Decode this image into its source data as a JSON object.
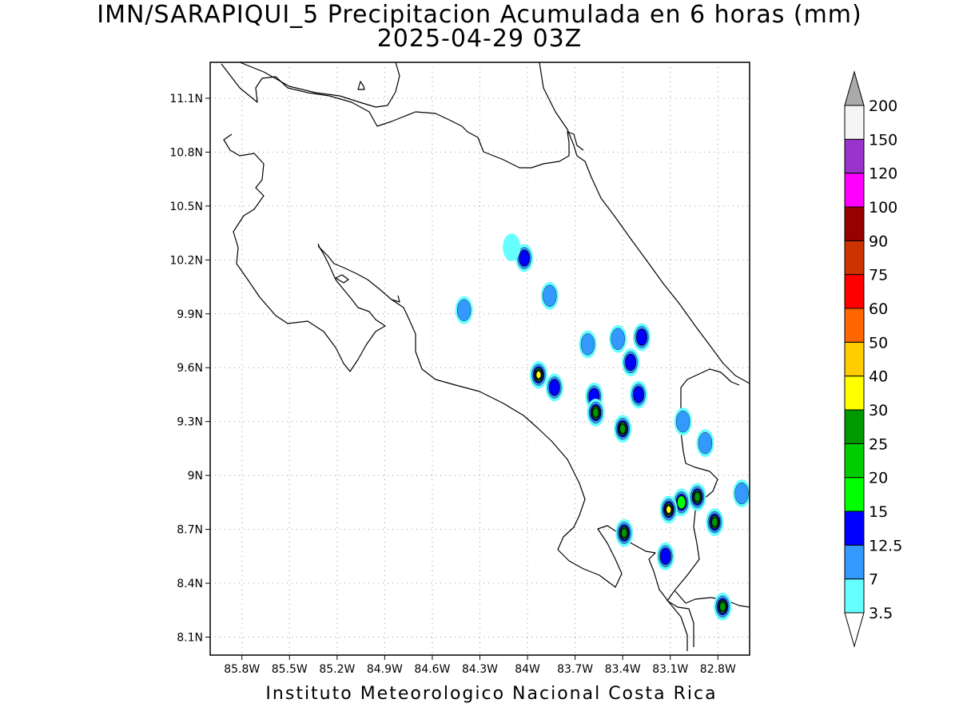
{
  "title": "IMN/SARAPIQUI_5 Precipitacion Acumulada en 6 horas (mm)",
  "subtitle": "2025-04-29 03Z",
  "credit": "Instituto Meteorologico Nacional Costa Rica",
  "map": {
    "lon_range": [
      -86.0,
      -82.6
    ],
    "lat_range": [
      8.0,
      11.3
    ],
    "grid": "dotted",
    "lat_ticks": [
      {
        "value": 11.1,
        "label": "11.1N"
      },
      {
        "value": 10.8,
        "label": "10.8N"
      },
      {
        "value": 10.5,
        "label": "10.5N"
      },
      {
        "value": 10.2,
        "label": "10.2N"
      },
      {
        "value": 9.9,
        "label": "9.9N"
      },
      {
        "value": 9.6,
        "label": "9.6N"
      },
      {
        "value": 9.3,
        "label": "9.3N"
      },
      {
        "value": 9.0,
        "label": "9N"
      },
      {
        "value": 8.7,
        "label": "8.7N"
      },
      {
        "value": 8.4,
        "label": "8.4N"
      },
      {
        "value": 8.1,
        "label": "8.1N"
      }
    ],
    "lon_ticks": [
      {
        "value": -85.8,
        "label": "85.8W"
      },
      {
        "value": -85.5,
        "label": "85.5W"
      },
      {
        "value": -85.2,
        "label": "85.2W"
      },
      {
        "value": -84.9,
        "label": "84.9W"
      },
      {
        "value": -84.6,
        "label": "84.6W"
      },
      {
        "value": -84.3,
        "label": "84.3W"
      },
      {
        "value": -84.0,
        "label": "84W"
      },
      {
        "value": -83.7,
        "label": "83.7W"
      },
      {
        "value": -83.4,
        "label": "83.4W"
      },
      {
        "value": -83.1,
        "label": "83.1W"
      },
      {
        "value": -82.8,
        "label": "82.8W"
      }
    ],
    "precip_cells": [
      {
        "lon": -84.4,
        "lat": 9.92,
        "peak": "7"
      },
      {
        "lon": -84.02,
        "lat": 10.21,
        "peak": "12.5"
      },
      {
        "lon": -84.1,
        "lat": 10.27,
        "peak": "3.5"
      },
      {
        "lon": -83.86,
        "lat": 10.0,
        "peak": "7"
      },
      {
        "lon": -83.93,
        "lat": 9.56,
        "peak": "30"
      },
      {
        "lon": -83.83,
        "lat": 9.49,
        "peak": "12.5"
      },
      {
        "lon": -83.58,
        "lat": 9.44,
        "peak": "12.5"
      },
      {
        "lon": -83.57,
        "lat": 9.35,
        "peak": "25"
      },
      {
        "lon": -83.4,
        "lat": 9.26,
        "peak": "25"
      },
      {
        "lon": -83.3,
        "lat": 9.45,
        "peak": "12.5"
      },
      {
        "lon": -83.35,
        "lat": 9.63,
        "peak": "12.5"
      },
      {
        "lon": -83.28,
        "lat": 9.77,
        "peak": "12.5"
      },
      {
        "lon": -83.43,
        "lat": 9.76,
        "peak": "7"
      },
      {
        "lon": -83.62,
        "lat": 9.73,
        "peak": "7"
      },
      {
        "lon": -83.02,
        "lat": 9.3,
        "peak": "7"
      },
      {
        "lon": -82.88,
        "lat": 9.18,
        "peak": "7"
      },
      {
        "lon": -82.93,
        "lat": 8.88,
        "peak": "25"
      },
      {
        "lon": -83.03,
        "lat": 8.85,
        "peak": "15"
      },
      {
        "lon": -83.11,
        "lat": 8.81,
        "peak": "30"
      },
      {
        "lon": -82.82,
        "lat": 8.74,
        "peak": "25"
      },
      {
        "lon": -83.39,
        "lat": 8.68,
        "peak": "25"
      },
      {
        "lon": -83.13,
        "lat": 8.55,
        "peak": "12.5"
      },
      {
        "lon": -82.77,
        "lat": 8.27,
        "peak": "25"
      },
      {
        "lon": -82.65,
        "lat": 8.9,
        "peak": "7"
      }
    ]
  },
  "colorbar": {
    "levels": [
      "3.5",
      "7",
      "12.5",
      "15",
      "20",
      "25",
      "30",
      "40",
      "50",
      "60",
      "75",
      "90",
      "100",
      "120",
      "150",
      "200"
    ],
    "colors": [
      "#66ffff",
      "#3399ff",
      "#0000ff",
      "#00ff00",
      "#00cc00",
      "#009900",
      "#ffff00",
      "#ffcc00",
      "#ff6600",
      "#ff0000",
      "#cc3300",
      "#990000",
      "#ff00ff",
      "#9933cc",
      "#f5f5f5",
      "#aaaaaa"
    ],
    "under_color": "#ffffff",
    "over_color": "#aaaaaa"
  }
}
